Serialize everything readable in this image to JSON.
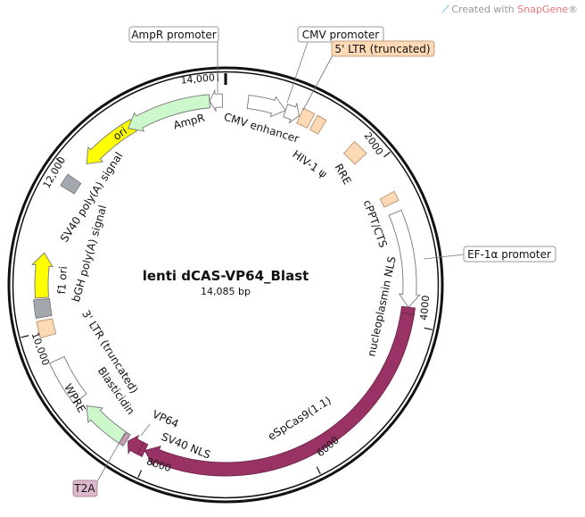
{
  "watermark": {
    "prefix": "Created with ",
    "brand": "SnapGene",
    "suffix": "®"
  },
  "plasmid": {
    "name": "lenti dCAS-VP64_Blast",
    "length_label": "14,085 bp",
    "length": 14085
  },
  "ticks": [
    {
      "bp": 2000,
      "label": "2000"
    },
    {
      "bp": 4000,
      "label": "4000"
    },
    {
      "bp": 6000,
      "label": "6000"
    },
    {
      "bp": 8000,
      "label": "8000"
    },
    {
      "bp": 10000,
      "label": "10,000"
    },
    {
      "bp": 12000,
      "label": "12,000"
    },
    {
      "bp": 14000,
      "label": "14,000"
    }
  ],
  "features": [
    {
      "name": "CMV enhancer",
      "start": 274,
      "end": 743,
      "dir": 1,
      "color": "#ffffff"
    },
    {
      "name": "CMV promoter",
      "start": 743,
      "end": 920,
      "dir": 1,
      "color": "#ffffff"
    },
    {
      "name": "5' LTR (truncated)",
      "start": 930,
      "end": 1076,
      "dir": 0,
      "color": "#fdd9b5"
    },
    {
      "name": "HIV-1 ψ",
      "start": 1115,
      "end": 1232,
      "dir": 0,
      "color": "#fdd9b5"
    },
    {
      "name": "RRE",
      "start": 1643,
      "end": 1839,
      "dir": 0,
      "color": "#fdd9b5"
    },
    {
      "name": "cPPT/CTS",
      "start": 2387,
      "end": 2504,
      "dir": 0,
      "color": "#fdd9b5"
    },
    {
      "name": "EF-1α promoter",
      "start": 2621,
      "end": 3795,
      "dir": 1,
      "color": "#ffffff"
    },
    {
      "name": "nucleoplasmin NLS",
      "start": 3795,
      "end": 3873,
      "dir": 0,
      "color": "#993366"
    },
    {
      "name": "eSpCas9(1.1)",
      "start": 3873,
      "end": 8060,
      "dir": 1,
      "color": "#993366"
    },
    {
      "name": "SV40 NLS",
      "start": 8060,
      "end": 8120,
      "dir": 0,
      "color": "#993366"
    },
    {
      "name": "VP64",
      "start": 8120,
      "end": 8295,
      "dir": 1,
      "color": "#993366"
    },
    {
      "name": "T2A",
      "start": 8314,
      "end": 8373,
      "dir": 0,
      "color": "#c89ab4"
    },
    {
      "name": "Blasticidin",
      "start": 8373,
      "end": 8960,
      "dir": 1,
      "color": "#ccf8cc"
    },
    {
      "name": "WPRE",
      "start": 9077,
      "end": 9625,
      "dir": 0,
      "color": "#ffffff"
    },
    {
      "name": "3' LTR (truncated)",
      "start": 9938,
      "end": 10133,
      "dir": 0,
      "color": "#fdd9b5"
    },
    {
      "name": "bGH poly(A) signal",
      "start": 10173,
      "end": 10388,
      "dir": 0,
      "color": "#a3a7ae"
    },
    {
      "name": "f1 ori",
      "start": 10407,
      "end": 10955,
      "dir": 1,
      "color": "#ffff00"
    },
    {
      "name": "SV40 poly(A) signal",
      "start": 11777,
      "end": 11933,
      "dir": 0,
      "color": "#a3a7ae"
    },
    {
      "name": "ori",
      "start": 12168,
      "end": 12911,
      "dir": -1,
      "color": "#ffff00"
    },
    {
      "name": "AmpR",
      "start": 12833,
      "end": 13889,
      "dir": -1,
      "color": "#ccf8cc"
    },
    {
      "name": "AmpR promoter",
      "start": 13889,
      "end": 14046,
      "dir": -1,
      "color": "#ffffff"
    }
  ]
}
